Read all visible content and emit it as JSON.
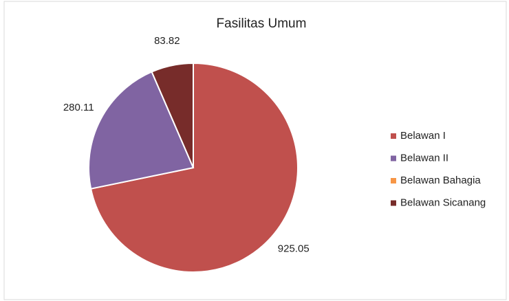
{
  "chart_data": {
    "type": "pie",
    "title": "Fasilitas Umum",
    "categories": [
      "Belawan I",
      "Belawan II",
      "Belawan Bahagia",
      "Belawan Sicanang"
    ],
    "values": [
      925.05,
      280.11,
      0,
      83.82
    ],
    "colors": [
      "#c0504d",
      "#8064a2",
      "#f79646",
      "#772c2a"
    ],
    "legend": "right"
  }
}
